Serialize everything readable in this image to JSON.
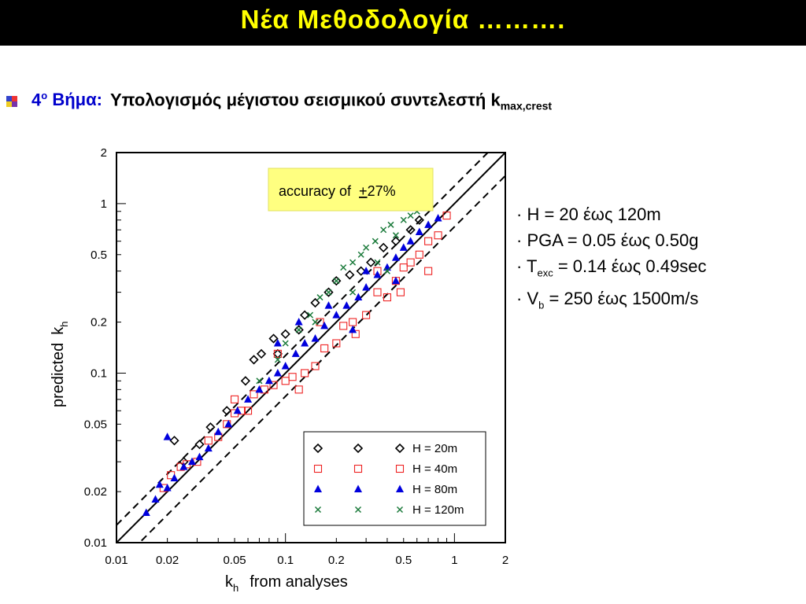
{
  "slide": {
    "title": "Νέα Μεθοδολογία ……….",
    "step_number": "4",
    "step_sup": "ο",
    "step_label": "Βήμα:",
    "step_text": "Υπολογισμός μέγιστου σεισμικού συντελεστή k",
    "step_sub": "max,crest"
  },
  "params": {
    "line1": "· H = 20 έως 120m",
    "line2": "· PGA = 0.05 έως 0.50g",
    "line3_pre": "· T",
    "line3_sub": "exc",
    "line3_post": " = 0.14 έως 0.49sec",
    "line4_pre": "· V",
    "line4_sub": "b",
    "line4_post": " = 250 έως 1500m/s"
  },
  "colors": {
    "title_bg": "#000000",
    "title_text": "#ffff00",
    "step_blue": "#0000cc",
    "note_bg": "#ffff80"
  },
  "chart_data": {
    "type": "scatter",
    "xscale": "log",
    "yscale": "log",
    "xlim": [
      0.01,
      2
    ],
    "ylim": [
      0.01,
      2
    ],
    "xticks": [
      "0.01",
      "0.02",
      "0.05",
      "0.1",
      "0.2",
      "0.5",
      "1",
      "2"
    ],
    "yticks": [
      "0.01",
      "0.02",
      "0.05",
      "0.1",
      "0.2",
      "0.5",
      "1",
      "2"
    ],
    "xlabel": "k",
    "xlabel_sub": "h",
    "xlabel_post": "from analyses",
    "ylabel": "predicted",
    "ylabel_k": "k",
    "ylabel_sub": "h",
    "annotation_pre": "accuracy of",
    "annotation_pm": "+",
    "annotation_val": "27%",
    "reference_lines": [
      {
        "name": "y = x",
        "factor": 1.0,
        "style": "solid"
      },
      {
        "name": "+27%",
        "factor": 1.27,
        "style": "dashed"
      },
      {
        "name": "-27%",
        "factor": 0.73,
        "style": "dashed"
      }
    ],
    "legend_position": "bottom-right",
    "series": [
      {
        "name": "H = 20m",
        "marker": "diamond",
        "color": "#000000",
        "points": [
          [
            0.022,
            0.04
          ],
          [
            0.025,
            0.03
          ],
          [
            0.031,
            0.038
          ],
          [
            0.036,
            0.048
          ],
          [
            0.045,
            0.06
          ],
          [
            0.058,
            0.09
          ],
          [
            0.065,
            0.12
          ],
          [
            0.072,
            0.13
          ],
          [
            0.085,
            0.16
          ],
          [
            0.09,
            0.13
          ],
          [
            0.1,
            0.17
          ],
          [
            0.12,
            0.18
          ],
          [
            0.13,
            0.22
          ],
          [
            0.15,
            0.26
          ],
          [
            0.18,
            0.3
          ],
          [
            0.2,
            0.35
          ],
          [
            0.24,
            0.38
          ],
          [
            0.28,
            0.4
          ],
          [
            0.32,
            0.45
          ],
          [
            0.38,
            0.55
          ],
          [
            0.45,
            0.6
          ],
          [
            0.55,
            0.7
          ],
          [
            0.62,
            0.8
          ]
        ]
      },
      {
        "name": "H = 40m",
        "marker": "square",
        "color": "#ee2222",
        "points": [
          [
            0.019,
            0.021
          ],
          [
            0.021,
            0.025
          ],
          [
            0.024,
            0.028
          ],
          [
            0.026,
            0.029
          ],
          [
            0.03,
            0.03
          ],
          [
            0.035,
            0.04
          ],
          [
            0.04,
            0.042
          ],
          [
            0.045,
            0.05
          ],
          [
            0.05,
            0.058
          ],
          [
            0.055,
            0.06
          ],
          [
            0.06,
            0.06
          ],
          [
            0.065,
            0.075
          ],
          [
            0.075,
            0.08
          ],
          [
            0.085,
            0.085
          ],
          [
            0.1,
            0.09
          ],
          [
            0.11,
            0.095
          ],
          [
            0.13,
            0.1
          ],
          [
            0.15,
            0.11
          ],
          [
            0.17,
            0.14
          ],
          [
            0.2,
            0.15
          ],
          [
            0.22,
            0.19
          ],
          [
            0.25,
            0.2
          ],
          [
            0.3,
            0.22
          ],
          [
            0.35,
            0.3
          ],
          [
            0.4,
            0.28
          ],
          [
            0.45,
            0.35
          ],
          [
            0.5,
            0.42
          ],
          [
            0.55,
            0.45
          ],
          [
            0.62,
            0.5
          ],
          [
            0.7,
            0.6
          ],
          [
            0.8,
            0.65
          ],
          [
            0.9,
            0.85
          ],
          [
            0.35,
            0.4
          ],
          [
            0.16,
            0.2
          ],
          [
            0.09,
            0.13
          ],
          [
            0.05,
            0.07
          ],
          [
            0.12,
            0.08
          ],
          [
            0.26,
            0.17
          ],
          [
            0.48,
            0.3
          ],
          [
            0.7,
            0.4
          ]
        ]
      },
      {
        "name": "H = 80m",
        "marker": "triangle",
        "color": "#0000dd",
        "points": [
          [
            0.015,
            0.015
          ],
          [
            0.017,
            0.018
          ],
          [
            0.018,
            0.022
          ],
          [
            0.02,
            0.021
          ],
          [
            0.02,
            0.042
          ],
          [
            0.022,
            0.024
          ],
          [
            0.025,
            0.028
          ],
          [
            0.028,
            0.03
          ],
          [
            0.031,
            0.032
          ],
          [
            0.035,
            0.036
          ],
          [
            0.04,
            0.045
          ],
          [
            0.046,
            0.05
          ],
          [
            0.052,
            0.06
          ],
          [
            0.06,
            0.07
          ],
          [
            0.07,
            0.08
          ],
          [
            0.08,
            0.09
          ],
          [
            0.09,
            0.1
          ],
          [
            0.1,
            0.11
          ],
          [
            0.115,
            0.13
          ],
          [
            0.13,
            0.15
          ],
          [
            0.15,
            0.16
          ],
          [
            0.17,
            0.19
          ],
          [
            0.2,
            0.22
          ],
          [
            0.23,
            0.25
          ],
          [
            0.27,
            0.28
          ],
          [
            0.3,
            0.32
          ],
          [
            0.35,
            0.38
          ],
          [
            0.4,
            0.42
          ],
          [
            0.45,
            0.48
          ],
          [
            0.5,
            0.55
          ],
          [
            0.55,
            0.6
          ],
          [
            0.62,
            0.68
          ],
          [
            0.7,
            0.75
          ],
          [
            0.8,
            0.82
          ],
          [
            0.09,
            0.15
          ],
          [
            0.12,
            0.2
          ],
          [
            0.18,
            0.25
          ],
          [
            0.3,
            0.4
          ],
          [
            0.25,
            0.18
          ],
          [
            0.45,
            0.35
          ]
        ]
      },
      {
        "name": "H = 120m",
        "marker": "x",
        "color": "#1a7a3a",
        "points": [
          [
            0.07,
            0.09
          ],
          [
            0.09,
            0.12
          ],
          [
            0.1,
            0.15
          ],
          [
            0.12,
            0.18
          ],
          [
            0.14,
            0.22
          ],
          [
            0.16,
            0.28
          ],
          [
            0.18,
            0.3
          ],
          [
            0.2,
            0.35
          ],
          [
            0.22,
            0.42
          ],
          [
            0.25,
            0.45
          ],
          [
            0.28,
            0.5
          ],
          [
            0.3,
            0.55
          ],
          [
            0.34,
            0.6
          ],
          [
            0.38,
            0.7
          ],
          [
            0.42,
            0.75
          ],
          [
            0.45,
            0.65
          ],
          [
            0.5,
            0.8
          ],
          [
            0.55,
            0.85
          ],
          [
            0.6,
            0.9
          ],
          [
            0.65,
            1.0
          ],
          [
            0.7,
            0.95
          ],
          [
            0.4,
            0.4
          ],
          [
            0.25,
            0.3
          ],
          [
            0.35,
            0.45
          ],
          [
            0.15,
            0.2
          ]
        ]
      }
    ]
  }
}
